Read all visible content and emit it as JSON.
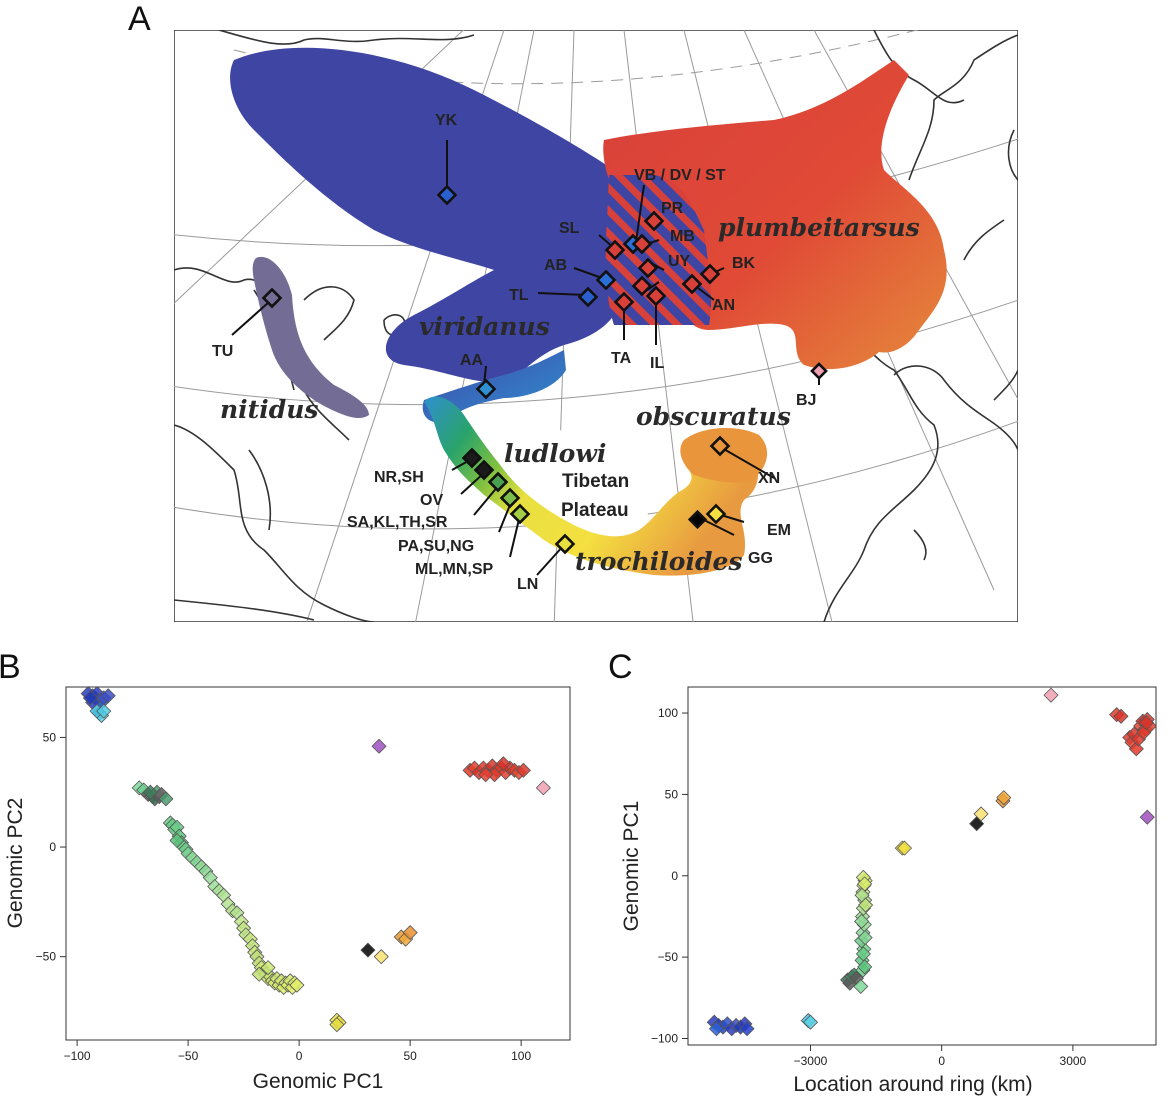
{
  "panel_letters": {
    "a": "A",
    "b": "B",
    "c": "C"
  },
  "map": {
    "taxa": {
      "viridanus": "viridanus",
      "plumbeitarsus": "plumbeitarsus",
      "nitidus": "nitidus",
      "ludlowi": "ludlowi",
      "obscuratus": "obscuratus",
      "trochiloides": "trochiloides"
    },
    "plateau": {
      "line1": "Tibetan",
      "line2": "Plateau"
    },
    "sites": {
      "YK": "YK",
      "VB": "VB / DV / ST",
      "PR": "PR",
      "SL": "SL",
      "MB": "MB",
      "AB": "AB",
      "UY": "UY",
      "BK": "BK",
      "TL": "TL",
      "AN": "AN",
      "TA": "TA",
      "IL": "IL",
      "TU": "TU",
      "AA": "AA",
      "BJ": "BJ",
      "XN": "XN",
      "NRSH": "NR,SH",
      "OV": "OV",
      "SA": "SA,KL,TH,SR",
      "PA": "PA,SU,NG",
      "ML": "ML,MN,SP",
      "LN": "LN",
      "EM": "EM",
      "GG": "GG"
    }
  },
  "chart_data": [
    {
      "type": "scatter",
      "panel": "B",
      "xlabel": "Genomic PC1",
      "ylabel": "Genomic PC2",
      "xlim": [
        -105,
        122
      ],
      "ylim": [
        -88,
        73
      ],
      "xticks": [
        -100,
        -50,
        0,
        50,
        100
      ],
      "yticks": [
        -50,
        0,
        50
      ],
      "points": [
        {
          "x": -95,
          "y": 70,
          "c": "#2a3cc0"
        },
        {
          "x": -93,
          "y": 69,
          "c": "#2440c8"
        },
        {
          "x": -92,
          "y": 68,
          "c": "#1f44c4"
        },
        {
          "x": -91,
          "y": 70,
          "c": "#2a3cc0"
        },
        {
          "x": -90,
          "y": 67,
          "c": "#2a50d0"
        },
        {
          "x": -89,
          "y": 66,
          "c": "#2a60d8"
        },
        {
          "x": -88,
          "y": 68,
          "c": "#3a50c8"
        },
        {
          "x": -93,
          "y": 66,
          "c": "#2a3cc0"
        },
        {
          "x": -86,
          "y": 69,
          "c": "#3a4cc4"
        },
        {
          "x": -94,
          "y": 68,
          "c": "#1f3ab8"
        },
        {
          "x": -90,
          "y": 61,
          "c": "#49c6e0"
        },
        {
          "x": -89,
          "y": 60,
          "c": "#5ad0e4"
        },
        {
          "x": -91,
          "y": 62,
          "c": "#40bee0"
        },
        {
          "x": -88,
          "y": 62,
          "c": "#52cae2"
        },
        {
          "x": -72,
          "y": 27,
          "c": "#7fd89a"
        },
        {
          "x": -70,
          "y": 26,
          "c": "#6fcf90"
        },
        {
          "x": -68,
          "y": 24,
          "c": "#5a5a5a"
        },
        {
          "x": -66,
          "y": 23,
          "c": "#4a8a60"
        },
        {
          "x": -65,
          "y": 22,
          "c": "#3a6a50"
        },
        {
          "x": -64,
          "y": 25,
          "c": "#4a9a6a"
        },
        {
          "x": -63,
          "y": 23,
          "c": "#5a5a5a"
        },
        {
          "x": -62,
          "y": 24,
          "c": "#6a6a6a"
        },
        {
          "x": -60,
          "y": 22,
          "c": "#4a9a70"
        },
        {
          "x": -67,
          "y": 25,
          "c": "#3e7a5a"
        },
        {
          "x": -58,
          "y": 11,
          "c": "#6fd08a"
        },
        {
          "x": -57,
          "y": 10,
          "c": "#5fc880"
        },
        {
          "x": -56,
          "y": 8,
          "c": "#74d48e"
        },
        {
          "x": -55,
          "y": 9,
          "c": "#6acc88"
        },
        {
          "x": -54,
          "y": 5,
          "c": "#5cc47c"
        },
        {
          "x": -53,
          "y": 2,
          "c": "#66ca86"
        },
        {
          "x": -52,
          "y": 0,
          "c": "#72d08c"
        },
        {
          "x": -55,
          "y": 3,
          "c": "#5cc07a"
        },
        {
          "x": -51,
          "y": -1,
          "c": "#6ccc88"
        },
        {
          "x": -50,
          "y": -3,
          "c": "#7ad490"
        },
        {
          "x": -48,
          "y": -5,
          "c": "#8ad898"
        },
        {
          "x": -46,
          "y": -7,
          "c": "#82d492"
        },
        {
          "x": -44,
          "y": -9,
          "c": "#90da96"
        },
        {
          "x": -42,
          "y": -11,
          "c": "#8ad694"
        },
        {
          "x": -40,
          "y": -14,
          "c": "#96dc98"
        },
        {
          "x": -38,
          "y": -18,
          "c": "#a0de98"
        },
        {
          "x": -36,
          "y": -20,
          "c": "#a8e094"
        },
        {
          "x": -34,
          "y": -22,
          "c": "#aee292"
        },
        {
          "x": -32,
          "y": -26,
          "c": "#b4e290"
        },
        {
          "x": -30,
          "y": -29,
          "c": "#bae48c"
        },
        {
          "x": -28,
          "y": -30,
          "c": "#b0e08c"
        },
        {
          "x": -26,
          "y": -34,
          "c": "#bee488"
        },
        {
          "x": -25,
          "y": -37,
          "c": "#c4e684"
        },
        {
          "x": -24,
          "y": -40,
          "c": "#bce284"
        },
        {
          "x": -22,
          "y": -42,
          "c": "#c8e680"
        },
        {
          "x": -21,
          "y": -45,
          "c": "#c2e47e"
        },
        {
          "x": -20,
          "y": -48,
          "c": "#cae67c"
        },
        {
          "x": -19,
          "y": -50,
          "c": "#bede7a"
        },
        {
          "x": -18,
          "y": -53,
          "c": "#c6e278"
        },
        {
          "x": -17,
          "y": -55,
          "c": "#ccea76"
        },
        {
          "x": -16,
          "y": -57,
          "c": "#c0e07a"
        },
        {
          "x": -15,
          "y": -58,
          "c": "#cfe874"
        },
        {
          "x": -14,
          "y": -60,
          "c": "#d4ea72"
        },
        {
          "x": -13,
          "y": -59,
          "c": "#c8e476"
        },
        {
          "x": -12,
          "y": -61,
          "c": "#d0e672"
        },
        {
          "x": -11,
          "y": -62,
          "c": "#d6ea70"
        },
        {
          "x": -10,
          "y": -60,
          "c": "#cce474"
        },
        {
          "x": -9,
          "y": -63,
          "c": "#d8ec6e"
        },
        {
          "x": -8,
          "y": -61,
          "c": "#d2e870"
        },
        {
          "x": -7,
          "y": -64,
          "c": "#dcee6c"
        },
        {
          "x": -6,
          "y": -62,
          "c": "#d4e870"
        },
        {
          "x": -5,
          "y": -63,
          "c": "#e0ee6a"
        },
        {
          "x": -4,
          "y": -61,
          "c": "#d8ea6e"
        },
        {
          "x": -3,
          "y": -64,
          "c": "#e2f06a"
        },
        {
          "x": -2,
          "y": -62,
          "c": "#dcec6c"
        },
        {
          "x": -1,
          "y": -63,
          "c": "#e4f068"
        },
        {
          "x": -18,
          "y": -58,
          "c": "#c4e278"
        },
        {
          "x": -14,
          "y": -55,
          "c": "#cae676"
        },
        {
          "x": 17,
          "y": -79,
          "c": "#e8e048"
        },
        {
          "x": 18,
          "y": -80,
          "c": "#f0e040"
        },
        {
          "x": 17,
          "y": -81,
          "c": "#e4dc44"
        },
        {
          "x": 31,
          "y": -47,
          "c": "#000000"
        },
        {
          "x": 37,
          "y": -50,
          "c": "#f8e070"
        },
        {
          "x": 46,
          "y": -41,
          "c": "#e89a30"
        },
        {
          "x": 48,
          "y": -42,
          "c": "#f0a83a"
        },
        {
          "x": 50,
          "y": -39,
          "c": "#e89030"
        },
        {
          "x": 36,
          "y": 46,
          "c": "#a050c0"
        },
        {
          "x": 110,
          "y": 27,
          "c": "#f0a0b0"
        },
        {
          "x": 77,
          "y": 35,
          "c": "#e03a2a"
        },
        {
          "x": 79,
          "y": 36,
          "c": "#e4402c"
        },
        {
          "x": 81,
          "y": 34,
          "c": "#d8342a"
        },
        {
          "x": 83,
          "y": 36,
          "c": "#e03a2a"
        },
        {
          "x": 85,
          "y": 35,
          "c": "#e64430"
        },
        {
          "x": 87,
          "y": 37,
          "c": "#d8362a"
        },
        {
          "x": 89,
          "y": 35,
          "c": "#e03a2a"
        },
        {
          "x": 91,
          "y": 36,
          "c": "#dc382a"
        },
        {
          "x": 93,
          "y": 34,
          "c": "#e44030"
        },
        {
          "x": 95,
          "y": 36,
          "c": "#d8342a"
        },
        {
          "x": 97,
          "y": 35,
          "c": "#e03a2a"
        },
        {
          "x": 99,
          "y": 34,
          "c": "#e64632"
        },
        {
          "x": 101,
          "y": 35,
          "c": "#da3a2c"
        },
        {
          "x": 88,
          "y": 33,
          "c": "#e03a2a"
        },
        {
          "x": 92,
          "y": 38,
          "c": "#d43228"
        },
        {
          "x": 84,
          "y": 33,
          "c": "#e44030"
        }
      ]
    },
    {
      "type": "scatter",
      "panel": "C",
      "xlabel": "Location around ring (km)",
      "ylabel": "Genomic PC1",
      "xlim": [
        -5800,
        4900
      ],
      "ylim": [
        -104,
        116
      ],
      "xticks": [
        -3000,
        0,
        3000
      ],
      "yticks": [
        -100,
        -50,
        0,
        50,
        100
      ],
      "points": [
        {
          "x": -5200,
          "y": -90,
          "c": "#2a3cc0"
        },
        {
          "x": -5100,
          "y": -92,
          "c": "#2440c8"
        },
        {
          "x": -5000,
          "y": -93,
          "c": "#1f44c4"
        },
        {
          "x": -4900,
          "y": -91,
          "c": "#2a50d0"
        },
        {
          "x": -4800,
          "y": -94,
          "c": "#2a3cc0"
        },
        {
          "x": -4700,
          "y": -92,
          "c": "#3a4cc4"
        },
        {
          "x": -4600,
          "y": -93,
          "c": "#1f3ab8"
        },
        {
          "x": -4500,
          "y": -91,
          "c": "#2a3cc0"
        },
        {
          "x": -4450,
          "y": -94,
          "c": "#2440c8"
        },
        {
          "x": -5150,
          "y": -94,
          "c": "#2a60d8"
        },
        {
          "x": -3050,
          "y": -89,
          "c": "#49c6e0"
        },
        {
          "x": -3000,
          "y": -90,
          "c": "#5ad0e4"
        },
        {
          "x": -2150,
          "y": -64,
          "c": "#3a6a50"
        },
        {
          "x": -2100,
          "y": -66,
          "c": "#5a5a5a"
        },
        {
          "x": -2050,
          "y": -62,
          "c": "#4a8a60"
        },
        {
          "x": -2000,
          "y": -61,
          "c": "#3e7a5a"
        },
        {
          "x": -1950,
          "y": -63,
          "c": "#5a5a5a"
        },
        {
          "x": -1850,
          "y": -68,
          "c": "#7fd89a"
        },
        {
          "x": -1800,
          "y": -58,
          "c": "#6fd08a"
        },
        {
          "x": -1820,
          "y": -52,
          "c": "#5fc880"
        },
        {
          "x": -1780,
          "y": -45,
          "c": "#74d48e"
        },
        {
          "x": -1830,
          "y": -40,
          "c": "#6acc88"
        },
        {
          "x": -1800,
          "y": -35,
          "c": "#8ad898"
        },
        {
          "x": -1770,
          "y": -30,
          "c": "#96dc98"
        },
        {
          "x": -1810,
          "y": -25,
          "c": "#a0de98"
        },
        {
          "x": -1790,
          "y": -20,
          "c": "#aee292"
        },
        {
          "x": -1760,
          "y": -15,
          "c": "#b4e290"
        },
        {
          "x": -1800,
          "y": -10,
          "c": "#bee488"
        },
        {
          "x": -1780,
          "y": -6,
          "c": "#c4e684"
        },
        {
          "x": -1750,
          "y": -3,
          "c": "#ccea76"
        },
        {
          "x": -1790,
          "y": -1,
          "c": "#d4ea72"
        },
        {
          "x": -1760,
          "y": -5,
          "c": "#dcee6c"
        },
        {
          "x": -1820,
          "y": -12,
          "c": "#b0e08c"
        },
        {
          "x": -1740,
          "y": -18,
          "c": "#c0e07a"
        },
        {
          "x": -1830,
          "y": -28,
          "c": "#90da96"
        },
        {
          "x": -1750,
          "y": -38,
          "c": "#82d492"
        },
        {
          "x": -1790,
          "y": -48,
          "c": "#66ca86"
        },
        {
          "x": -1760,
          "y": -56,
          "c": "#5cc47c"
        },
        {
          "x": -900,
          "y": 17,
          "c": "#e8e048"
        },
        {
          "x": -850,
          "y": 17,
          "c": "#f0e040"
        },
        {
          "x": 800,
          "y": 32,
          "c": "#000000"
        },
        {
          "x": 900,
          "y": 38,
          "c": "#f8e070"
        },
        {
          "x": 1400,
          "y": 46,
          "c": "#e89030"
        },
        {
          "x": 1420,
          "y": 48,
          "c": "#f0a83a"
        },
        {
          "x": 2500,
          "y": 111,
          "c": "#f0a0b0"
        },
        {
          "x": 4700,
          "y": 36,
          "c": "#a050c0"
        },
        {
          "x": 4000,
          "y": 99,
          "c": "#e03a2a"
        },
        {
          "x": 4100,
          "y": 98,
          "c": "#d8342a"
        },
        {
          "x": 4300,
          "y": 85,
          "c": "#e03a2a"
        },
        {
          "x": 4350,
          "y": 82,
          "c": "#e44030"
        },
        {
          "x": 4400,
          "y": 87,
          "c": "#d8362a"
        },
        {
          "x": 4450,
          "y": 78,
          "c": "#e03a2a"
        },
        {
          "x": 4500,
          "y": 84,
          "c": "#dc382a"
        },
        {
          "x": 4550,
          "y": 92,
          "c": "#e64430"
        },
        {
          "x": 4600,
          "y": 95,
          "c": "#d43228"
        },
        {
          "x": 4650,
          "y": 90,
          "c": "#e03a2a"
        },
        {
          "x": 4700,
          "y": 96,
          "c": "#da3a2c"
        },
        {
          "x": 4750,
          "y": 92,
          "c": "#e44030"
        },
        {
          "x": 4620,
          "y": 88,
          "c": "#e03a2a"
        },
        {
          "x": 4680,
          "y": 94,
          "c": "#d8342a"
        }
      ]
    }
  ]
}
